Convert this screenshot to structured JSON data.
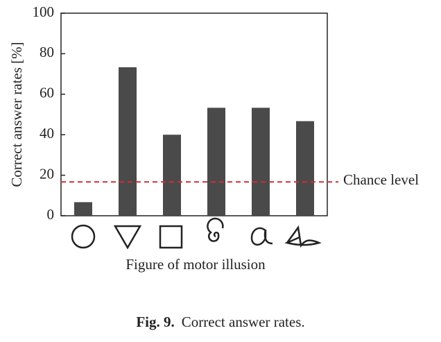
{
  "chart_data": {
    "type": "bar",
    "y_label": "Correct answer rates [%]",
    "x_label": "Figure of motor illusion",
    "categories": [
      null,
      null,
      null,
      null,
      null,
      null
    ],
    "values": [
      6.7,
      73.3,
      40,
      53.3,
      53.3,
      46.7
    ],
    "color": "#4a4a4a",
    "ylim": [
      0,
      100
    ],
    "yticks": [
      0,
      20,
      40,
      60,
      80,
      100
    ],
    "chance_level": 16.7,
    "chance_label": "Chance level",
    "chance_color": "#d03030",
    "caption_label": "Fig. 9.",
    "caption": "Correct answer rates."
  }
}
